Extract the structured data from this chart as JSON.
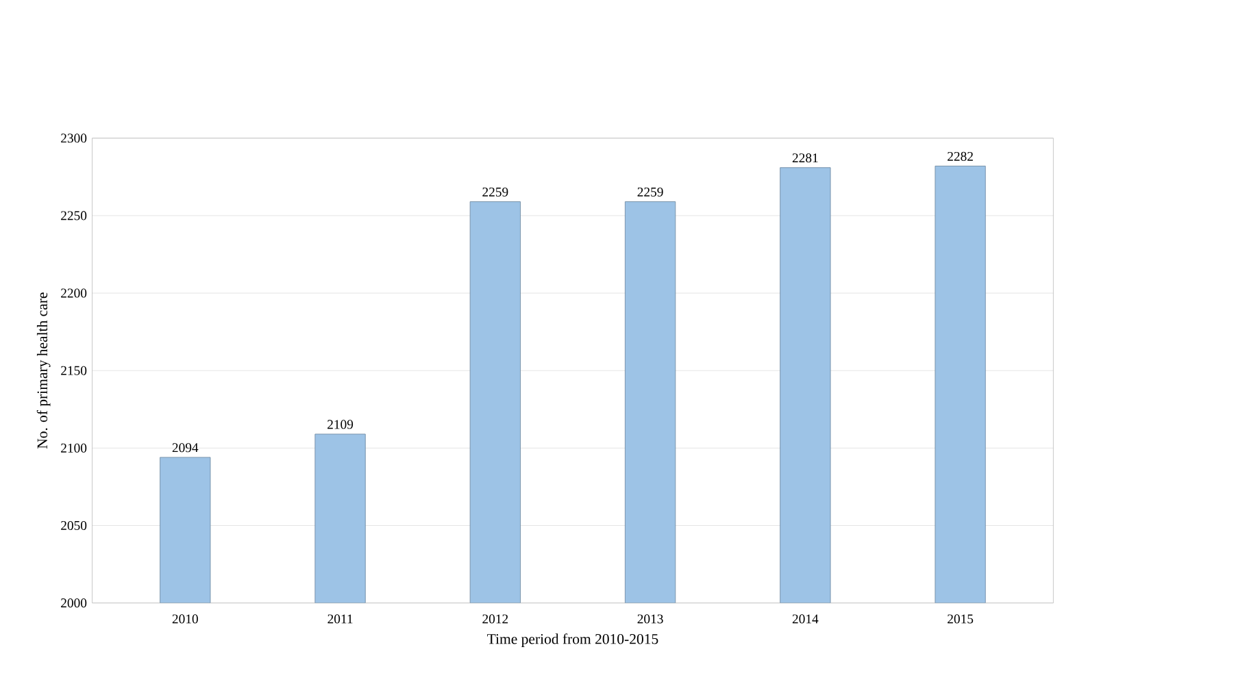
{
  "chart_data": {
    "type": "bar",
    "xlabel": "Time period from 2010-2015",
    "ylabel": "No. of primary health care",
    "categories": [
      "2010",
      "2011",
      "2012",
      "2013",
      "2014",
      "2015"
    ],
    "values": [
      2094,
      2109,
      2259,
      2259,
      2281,
      2282
    ],
    "color": "#9dc3e6",
    "ylim": [
      2000,
      2300
    ],
    "yticks": [
      2000,
      2050,
      2100,
      2150,
      2200,
      2250,
      2300
    ],
    "grid": "y",
    "data_labels": true
  }
}
